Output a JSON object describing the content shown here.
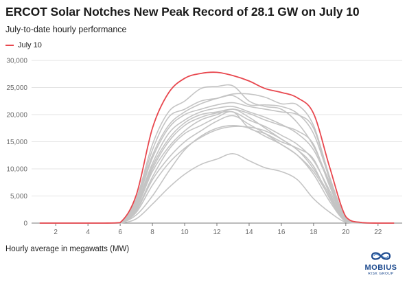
{
  "chart_data": {
    "type": "line",
    "title": "ERCOT Solar Notches New Peak Record of 28.1 GW on July 10",
    "subtitle": "July-to-date hourly performance",
    "note": "Hourly average in megawatts (MW)",
    "xlim": [
      0.5,
      23.5
    ],
    "ylim": [
      0,
      30000
    ],
    "x_ticks": [
      2,
      4,
      6,
      8,
      10,
      12,
      14,
      16,
      18,
      20,
      22
    ],
    "y_ticks": [
      0,
      5000,
      10000,
      15000,
      20000,
      25000,
      30000
    ],
    "y_tick_labels": [
      "0",
      "5,000",
      "10,000",
      "15,000",
      "20,000",
      "25,000",
      "30,000"
    ],
    "grid": "horizontal",
    "legend": "top-left",
    "x": [
      1,
      2,
      3,
      4,
      5,
      6,
      7,
      8,
      9,
      10,
      11,
      12,
      13,
      14,
      15,
      16,
      17,
      18,
      19,
      20,
      21,
      22,
      23
    ],
    "highlight": {
      "name": "July 10",
      "color": "#e8474e",
      "values": [
        0,
        0,
        0,
        0,
        0,
        100,
        5200,
        17500,
        24000,
        26700,
        27600,
        27800,
        27200,
        26200,
        24800,
        24100,
        23100,
        20200,
        10300,
        1200,
        100,
        0,
        0
      ]
    },
    "other_series_color": "#c4c4c4",
    "other_series": [
      {
        "values": [
          0,
          0,
          0,
          0,
          0,
          60,
          4500,
          14500,
          20500,
          22500,
          24800,
          25200,
          25300,
          22500,
          21500,
          21000,
          18500,
          14200,
          7500,
          800,
          50,
          0,
          0
        ]
      },
      {
        "values": [
          0,
          0,
          0,
          0,
          0,
          50,
          4200,
          13500,
          19500,
          21000,
          22500,
          23000,
          23500,
          21800,
          21800,
          21500,
          20200,
          16500,
          8200,
          900,
          50,
          0,
          0
        ]
      },
      {
        "values": [
          0,
          0,
          0,
          0,
          0,
          50,
          4000,
          12500,
          18000,
          20500,
          22000,
          23000,
          23800,
          23800,
          23200,
          22000,
          21800,
          18000,
          8500,
          1000,
          50,
          0,
          0
        ]
      },
      {
        "values": [
          0,
          0,
          0,
          0,
          0,
          40,
          3800,
          12000,
          17500,
          20000,
          21000,
          21800,
          22200,
          21500,
          21000,
          20500,
          20000,
          17500,
          8000,
          800,
          40,
          0,
          0
        ]
      },
      {
        "values": [
          0,
          0,
          0,
          0,
          0,
          40,
          3500,
          11000,
          16500,
          19000,
          20500,
          21200,
          21500,
          20500,
          19500,
          18200,
          16500,
          13500,
          7200,
          700,
          40,
          0,
          0
        ]
      },
      {
        "values": [
          0,
          0,
          0,
          0,
          0,
          30,
          3200,
          10500,
          15500,
          18500,
          20000,
          20500,
          21000,
          20200,
          19000,
          18000,
          17000,
          14500,
          6800,
          600,
          30,
          0,
          0
        ]
      },
      {
        "values": [
          0,
          0,
          0,
          0,
          0,
          30,
          3000,
          10000,
          15000,
          18000,
          19500,
          20300,
          20500,
          19000,
          17800,
          16200,
          14500,
          11500,
          6000,
          500,
          30,
          0,
          0
        ]
      },
      {
        "values": [
          0,
          0,
          0,
          0,
          0,
          30,
          2800,
          9500,
          14000,
          17000,
          19000,
          20000,
          21000,
          19500,
          17500,
          15500,
          13500,
          10000,
          5200,
          450,
          30,
          0,
          0
        ]
      },
      {
        "values": [
          0,
          0,
          0,
          0,
          0,
          20,
          2500,
          8500,
          13500,
          16500,
          18000,
          19500,
          20500,
          17500,
          16500,
          15000,
          13800,
          11800,
          5500,
          400,
          20,
          0,
          0
        ]
      },
      {
        "values": [
          0,
          0,
          0,
          0,
          0,
          20,
          2300,
          8000,
          12000,
          15000,
          17000,
          18800,
          19800,
          18200,
          16500,
          14500,
          12500,
          9500,
          4800,
          350,
          20,
          0,
          0
        ]
      },
      {
        "values": [
          0,
          0,
          0,
          0,
          0,
          20,
          2000,
          7000,
          11000,
          13800,
          15800,
          17200,
          17800,
          17700,
          17000,
          15500,
          13500,
          10500,
          4500,
          300,
          20,
          0,
          0
        ]
      },
      {
        "values": [
          0,
          0,
          0,
          0,
          0,
          10,
          1500,
          5000,
          9500,
          13500,
          16000,
          17500,
          18000,
          17500,
          16000,
          14500,
          12500,
          9000,
          4000,
          250,
          10,
          0,
          0
        ]
      },
      {
        "values": [
          0,
          0,
          0,
          0,
          0,
          10,
          800,
          3500,
          6500,
          9000,
          10800,
          11800,
          12800,
          11500,
          10200,
          9500,
          8000,
          4500,
          2000,
          150,
          10,
          0,
          0
        ]
      }
    ]
  },
  "branding": {
    "name": "MOBIUS",
    "tagline": "RISK GROUP"
  }
}
